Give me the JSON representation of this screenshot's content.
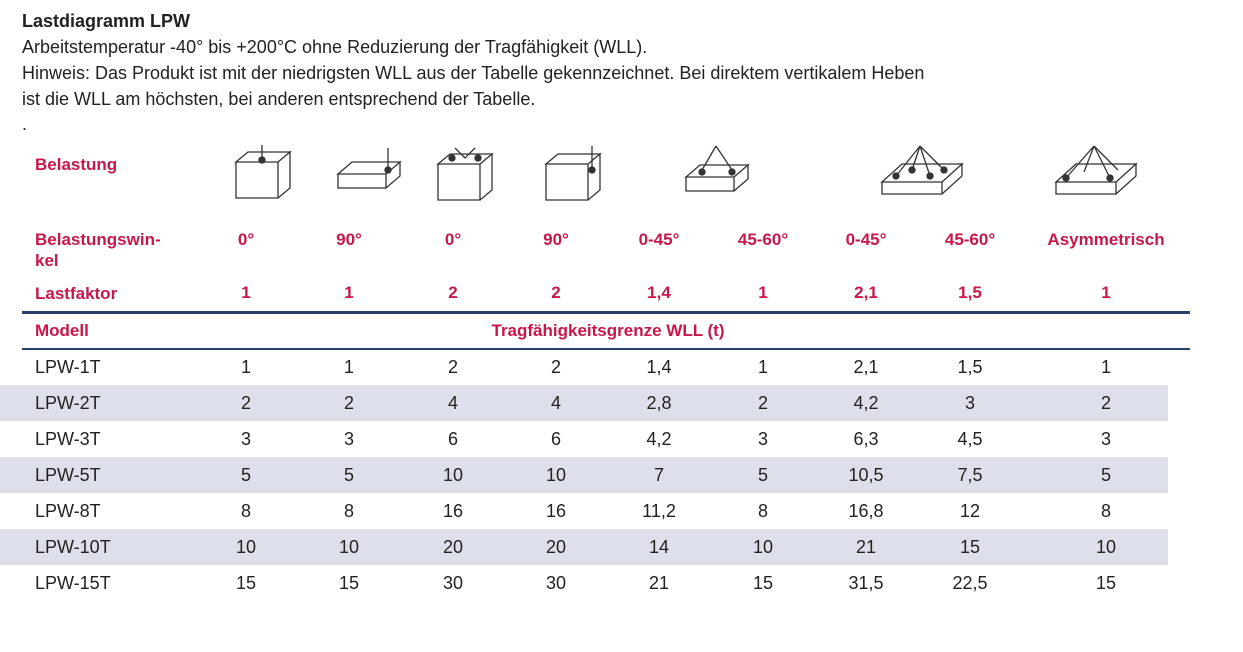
{
  "header": {
    "title": "Lastdiagramm LPW",
    "lines": [
      "Arbeitstemperatur -40° bis +200°C ohne Reduzierung der Tragfähigkeit (WLL).",
      "Hinweis: Das Produkt ist mit der niedrigsten WLL aus der Tabelle gekennzeichnet. Bei direktem vertikalem Heben",
      "ist die WLL am höchsten, bei anderen entsprechend der Tabelle."
    ],
    "dot": "."
  },
  "table": {
    "load_label": "Belastung",
    "angle_label": [
      "Belastungswin-",
      "kel"
    ],
    "angles": [
      "0°",
      "90°",
      "0°",
      "90°",
      "0-45°",
      "45-60°",
      "0-45°",
      "45-60°",
      "Asymmetrisch"
    ],
    "factor_label": "Lastfaktor",
    "factors": [
      "1",
      "1",
      "2",
      "2",
      "1,4",
      "1",
      "2,1",
      "1,5",
      "1"
    ],
    "model_label": "Modell",
    "capacity_label": "Tragfähigkeitsgrenze WLL (t)",
    "rows": [
      [
        "LPW-1T",
        "1",
        "1",
        "2",
        "2",
        "1,4",
        "1",
        "2,1",
        "1,5",
        "1"
      ],
      [
        "LPW-2T",
        "2",
        "2",
        "4",
        "4",
        "2,8",
        "2",
        "4,2",
        "3",
        "2"
      ],
      [
        "LPW-3T",
        "3",
        "3",
        "6",
        "6",
        "4,2",
        "3",
        "6,3",
        "4,5",
        "3"
      ],
      [
        "LPW-5T",
        "5",
        "5",
        "10",
        "10",
        "7",
        "5",
        "10,5",
        "7,5",
        "5"
      ],
      [
        "LPW-8T",
        "8",
        "8",
        "16",
        "16",
        "11,2",
        "8",
        "16,8",
        "12",
        "8"
      ],
      [
        "LPW-10T",
        "10",
        "10",
        "20",
        "20",
        "14",
        "10",
        "21",
        "15",
        "10"
      ],
      [
        "LPW-15T",
        "15",
        "15",
        "30",
        "30",
        "21",
        "15",
        "31,5",
        "22,5",
        "15"
      ]
    ]
  }
}
